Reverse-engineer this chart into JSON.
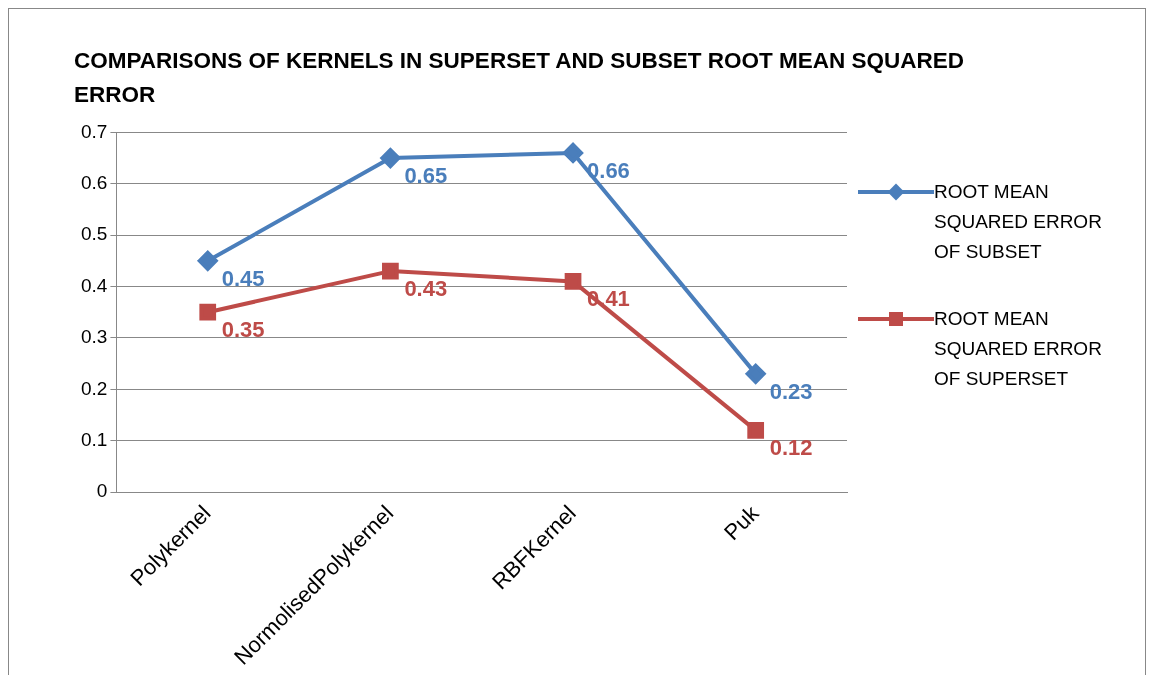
{
  "chart_data": {
    "type": "line",
    "title": "COMPARISONS OF  KERNELS IN SUPERSET AND  SUBSET ROOT MEAN SQUARED ERROR",
    "categories": [
      "Polykernel",
      "NormolisedPolykernel",
      "RBFKernel",
      "Puk"
    ],
    "series": [
      {
        "name": "ROOT MEAN SQUARED ERROR OF SUBSET",
        "color": "#4a7ebb",
        "marker": "diamond",
        "values": [
          0.45,
          0.65,
          0.66,
          0.23
        ]
      },
      {
        "name": "ROOT MEAN SQUARED ERROR OF SUPERSET",
        "color": "#be4b48",
        "marker": "square",
        "values": [
          0.35,
          0.43,
          0.41,
          0.12
        ]
      }
    ],
    "ylim": [
      0,
      0.7
    ],
    "yticks": [
      0,
      0.1,
      0.2,
      0.3,
      0.4,
      0.5,
      0.6,
      0.7
    ],
    "grid": "y",
    "legend": "right",
    "data_labels": true,
    "line_style": "solid"
  }
}
